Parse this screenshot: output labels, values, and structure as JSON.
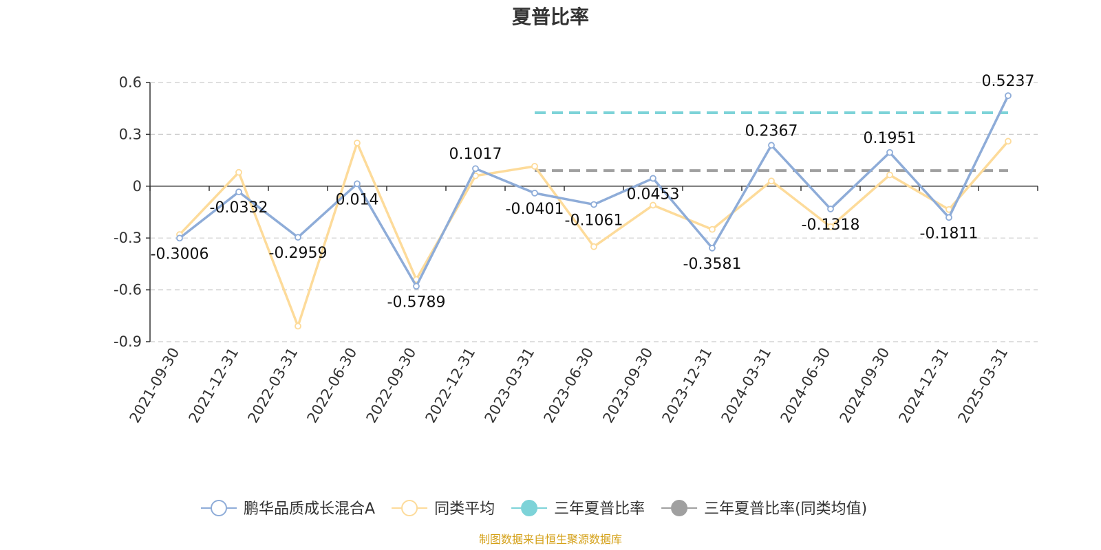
{
  "chart_data": {
    "type": "line",
    "title": "夏普比率",
    "categories": [
      "2021-09-30",
      "2021-12-31",
      "2022-03-31",
      "2022-06-30",
      "2022-09-30",
      "2022-12-31",
      "2023-03-31",
      "2023-06-30",
      "2023-09-30",
      "2023-12-31",
      "2024-03-31",
      "2024-06-30",
      "2024-09-30",
      "2024-12-31",
      "2025-03-31"
    ],
    "ylim": [
      -0.9,
      0.6
    ],
    "yticks": [
      "0.6",
      "0.3",
      "0",
      "-0.3",
      "-0.6",
      "-0.9"
    ],
    "ytick_values": [
      0.6,
      0.3,
      0,
      -0.3,
      -0.6,
      -0.9
    ],
    "grid": true,
    "series": [
      {
        "name": "鹏华品质成长混合A",
        "color": "#8eacd8",
        "values": [
          -0.3006,
          -0.0332,
          -0.2959,
          0.014,
          -0.5789,
          0.1017,
          -0.0401,
          -0.1061,
          0.0453,
          -0.3581,
          0.2367,
          -0.1318,
          0.1951,
          -0.1811,
          0.5237
        ],
        "labels": [
          "-0.3006",
          "-0.0332",
          "-0.2959",
          "0.014",
          "-0.5789",
          "0.1017",
          "-0.0401",
          "-0.1061",
          "0.0453",
          "-0.3581",
          "0.2367",
          "-0.1318",
          "0.1951",
          "-0.1811",
          "0.5237"
        ]
      },
      {
        "name": "同类平均",
        "color": "#fddb9a",
        "values": [
          -0.28,
          0.08,
          -0.81,
          0.25,
          -0.54,
          0.06,
          0.115,
          -0.35,
          -0.11,
          -0.25,
          0.03,
          -0.235,
          0.065,
          -0.135,
          0.26
        ]
      }
    ],
    "reference_lines": [
      {
        "name": "三年夏普比率",
        "color": "#7dd3d8",
        "value": 0.425,
        "from": "2023-03-31",
        "to": "2025-03-31"
      },
      {
        "name": "三年夏普比率(同类均值)",
        "color": "#a0a0a0",
        "value": 0.09,
        "from": "2023-03-31",
        "to": "2025-03-31"
      }
    ],
    "legend_position": "bottom"
  },
  "source": {
    "text": "制图数据来自恒生聚源数据库",
    "color": "#d4a017"
  }
}
